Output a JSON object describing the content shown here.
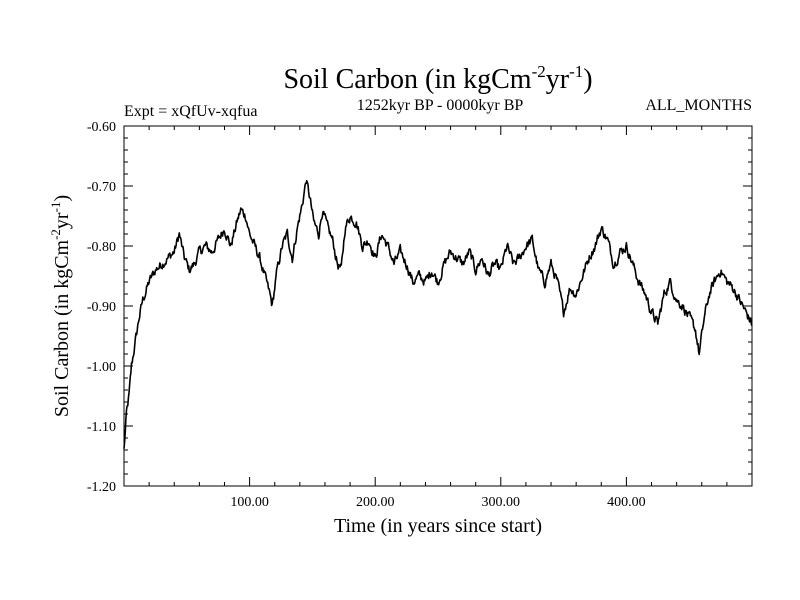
{
  "chart_data": {
    "type": "line",
    "title": {
      "main": "Soil Carbon (in kgCm",
      "sup1": "-2",
      "mid": "yr",
      "sup2": "-1",
      "end": ")"
    },
    "subtitle_left": "Expt = xQfUv-xqfua",
    "subtitle_center": "1252kyr BP - 0000kyr BP",
    "subtitle_right": "ALL_MONTHS",
    "xlabel": "Time (in years since start)",
    "ylabel": {
      "main": "Soil Carbon (in kgCm",
      "sup1": "-2",
      "mid": "yr",
      "sup2": "-1",
      "end": ")"
    },
    "xlim": [
      0,
      500
    ],
    "ylim": [
      -1.2,
      -0.6
    ],
    "xticks": [
      100,
      200,
      300,
      400
    ],
    "xtick_labels": [
      "100.00",
      "200.00",
      "300.00",
      "400.00"
    ],
    "yticks": [
      -0.6,
      -0.7,
      -0.8,
      -0.9,
      -1.0,
      -1.1,
      -1.2
    ],
    "ytick_labels": [
      "-0.60",
      "-0.70",
      "-0.80",
      "-0.90",
      "-1.00",
      "-1.10",
      "-1.20"
    ],
    "series": [
      {
        "name": "Soil Carbon",
        "color": "#000000",
        "anchors": {
          "x": [
            0,
            2,
            4,
            6,
            9,
            12,
            15,
            20,
            25,
            30,
            35,
            40,
            44,
            48,
            52,
            56,
            60,
            65,
            70,
            75,
            80,
            85,
            90,
            93,
            97,
            100,
            104,
            108,
            112,
            116,
            118,
            122,
            126,
            130,
            134,
            138,
            142,
            145,
            148,
            151,
            155,
            158,
            162,
            166,
            170,
            173,
            176,
            180,
            185,
            190,
            195,
            200,
            205,
            210,
            215,
            220,
            225,
            230,
            235,
            240,
            245,
            250,
            255,
            260,
            265,
            270,
            275,
            280,
            285,
            290,
            295,
            300,
            305,
            310,
            315,
            320,
            325,
            330,
            335,
            340,
            345,
            350,
            355,
            360,
            365,
            370,
            375,
            380,
            385,
            390,
            395,
            400,
            405,
            410,
            415,
            420,
            425,
            430,
            435,
            440,
            445,
            450,
            455,
            458,
            462,
            466,
            470,
            475,
            480,
            485,
            490,
            495,
            500
          ],
          "y": [
            -1.14,
            -1.08,
            -1.05,
            -1.0,
            -0.96,
            -0.92,
            -0.89,
            -0.86,
            -0.84,
            -0.83,
            -0.82,
            -0.81,
            -0.78,
            -0.82,
            -0.84,
            -0.83,
            -0.81,
            -0.8,
            -0.81,
            -0.79,
            -0.77,
            -0.8,
            -0.76,
            -0.74,
            -0.75,
            -0.78,
            -0.8,
            -0.82,
            -0.85,
            -0.88,
            -0.9,
            -0.84,
            -0.8,
            -0.78,
            -0.82,
            -0.77,
            -0.73,
            -0.69,
            -0.72,
            -0.76,
            -0.78,
            -0.74,
            -0.77,
            -0.79,
            -0.83,
            -0.84,
            -0.77,
            -0.75,
            -0.76,
            -0.8,
            -0.79,
            -0.82,
            -0.78,
            -0.8,
            -0.83,
            -0.81,
            -0.83,
            -0.86,
            -0.85,
            -0.86,
            -0.84,
            -0.86,
            -0.83,
            -0.81,
            -0.82,
            -0.83,
            -0.81,
            -0.84,
            -0.82,
            -0.85,
            -0.83,
            -0.84,
            -0.8,
            -0.83,
            -0.82,
            -0.8,
            -0.79,
            -0.84,
            -0.86,
            -0.83,
            -0.86,
            -0.91,
            -0.87,
            -0.88,
            -0.85,
            -0.82,
            -0.8,
            -0.77,
            -0.79,
            -0.83,
            -0.81,
            -0.8,
            -0.83,
            -0.86,
            -0.88,
            -0.91,
            -0.93,
            -0.88,
            -0.86,
            -0.89,
            -0.9,
            -0.92,
            -0.94,
            -0.98,
            -0.92,
            -0.88,
            -0.86,
            -0.84,
            -0.86,
            -0.87,
            -0.89,
            -0.91,
            -0.93
          ]
        }
      }
    ]
  }
}
